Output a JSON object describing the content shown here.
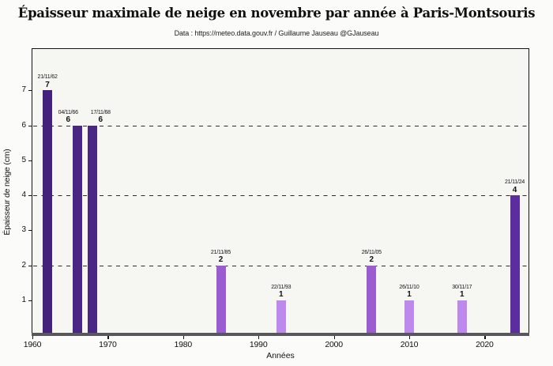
{
  "title": "Épaisseur maximale de neige en novembre par année à Paris-Montsouris",
  "subtitle": "Data : https://meteo.data.gouv.fr / Guillaume Jauseau @GJauseau",
  "chart_data": {
    "type": "bar",
    "title": "Épaisseur maximale de neige en novembre par année à Paris-Montsouris",
    "subtitle": "Data : https://meteo.data.gouv.fr / Guillaume Jauseau @GJauseau",
    "xlabel": "Années",
    "ylabel": "Épaisseur de neige (cm)",
    "x_ticks": [
      1960,
      1970,
      1980,
      1990,
      2000,
      2010,
      2020
    ],
    "y_ticks": [
      1,
      2,
      3,
      4,
      5,
      6,
      7
    ],
    "xlim": [
      1959.9,
      2026
    ],
    "ylim": [
      0,
      8.2
    ],
    "grid": "dashed horizontal lines at y = 2, 4, 6",
    "grid_y_dashed": [
      2,
      4,
      6
    ],
    "legend": "none",
    "bars": [
      {
        "year": 1962,
        "date": "21/11/62",
        "value": 7,
        "color": "#45217e"
      },
      {
        "year": 1966,
        "date": "04/11/66",
        "value": 6,
        "color": "#4a2685"
      },
      {
        "year": 1968,
        "date": "17/11/68",
        "value": 6,
        "color": "#4a2685"
      },
      {
        "year": 1985,
        "date": "21/11/85",
        "value": 2,
        "color": "#9c5cd1"
      },
      {
        "year": 1993,
        "date": "22/11/93",
        "value": 1,
        "color": "#bd89ec"
      },
      {
        "year": 2005,
        "date": "26/11/05",
        "value": 2,
        "color": "#9c5cd1"
      },
      {
        "year": 2010,
        "date": "26/11/10",
        "value": 1,
        "color": "#bd89ec"
      },
      {
        "year": 2017,
        "date": "30/11/17",
        "value": 1,
        "color": "#bd89ec"
      },
      {
        "year": 2024,
        "date": "21/11/24",
        "value": 4,
        "color": "#5c2d9f"
      }
    ]
  },
  "colors": {
    "figure_background": "#fbfbfa",
    "plot_background": "#f6f6f3",
    "frame": "#141414",
    "bottom_spine": "#57575b",
    "gridline": "#2b2b2b",
    "text": "#111111",
    "bar_dark": "#45217e",
    "bar_medium": "#9c5cd1",
    "bar_light": "#bd89ec"
  }
}
